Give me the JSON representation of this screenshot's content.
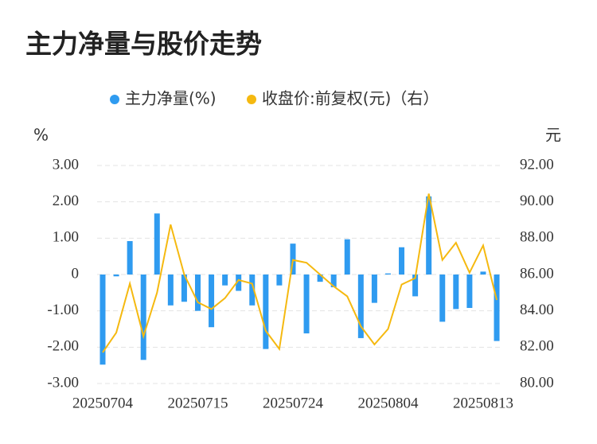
{
  "chart_data": {
    "type": "bar_line",
    "title": "主力净量与股价走势",
    "y_label": "%",
    "y2_label": "元",
    "categories": [
      "20250704",
      null,
      null,
      null,
      null,
      null,
      null,
      "20250715",
      null,
      null,
      null,
      null,
      null,
      null,
      "20250724",
      null,
      null,
      null,
      null,
      null,
      null,
      "20250804",
      null,
      null,
      null,
      null,
      null,
      null,
      "20250813",
      null
    ],
    "series": [
      {
        "name": "主力净量(%)",
        "type": "bar",
        "color": "#2f9bf0",
        "values": [
          -2.48,
          -0.05,
          0.92,
          -2.35,
          1.68,
          -0.85,
          -0.75,
          -1.0,
          -1.45,
          -0.3,
          -0.45,
          -0.85,
          -2.05,
          -0.3,
          0.85,
          -1.62,
          -0.2,
          -0.35,
          0.97,
          -1.75,
          -0.78,
          0.03,
          0.75,
          -0.6,
          2.15,
          -1.3,
          -0.95,
          -0.92,
          0.08,
          -1.83
        ]
      },
      {
        "name": "收盘价:前复权(元)（右）",
        "type": "line",
        "axis": "y2",
        "color": "#f5b910",
        "values": [
          81.71,
          82.8,
          85.5,
          82.6,
          85.0,
          88.75,
          86.0,
          84.47,
          84.1,
          84.7,
          85.7,
          85.5,
          82.9,
          81.9,
          86.8,
          86.65,
          86.0,
          85.35,
          84.8,
          83.15,
          82.15,
          83.0,
          85.45,
          85.8,
          90.45,
          86.8,
          87.75,
          86.1,
          87.6,
          84.6
        ]
      }
    ],
    "ylim": [
      -3,
      3
    ],
    "yticks": [
      {
        "value": -3,
        "label": "-3.00"
      },
      {
        "value": -2,
        "label": "-2.00"
      },
      {
        "value": -1,
        "label": "-1.00"
      },
      0,
      {
        "value": 1,
        "label": "1.00"
      },
      {
        "value": 2,
        "label": "2.00"
      },
      {
        "value": 3,
        "label": "3.00"
      }
    ],
    "y2lim": [
      80,
      92
    ],
    "y2ticks": [
      {
        "value": 80,
        "label": "80.00"
      },
      {
        "value": 82,
        "label": "82.00"
      },
      {
        "value": 84,
        "label": "84.00"
      },
      {
        "value": 86,
        "label": "86.00"
      },
      {
        "value": 88,
        "label": "88.00"
      },
      {
        "value": 90,
        "label": "90.00"
      },
      {
        "value": 92,
        "label": "92.00"
      }
    ],
    "grid": true,
    "legend": "top"
  }
}
